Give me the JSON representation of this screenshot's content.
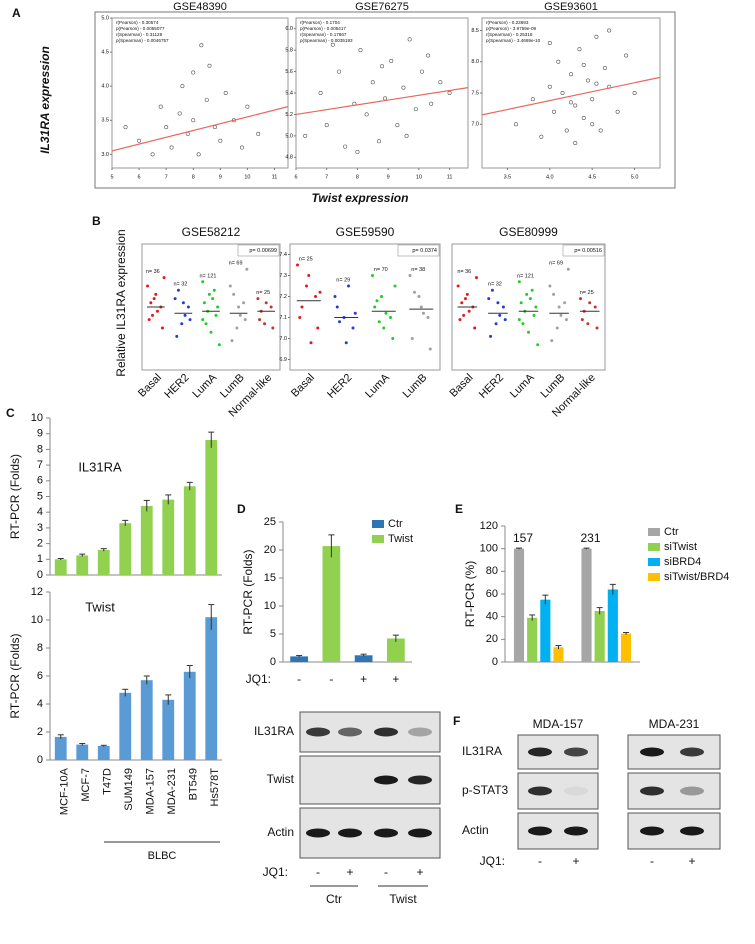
{
  "figure": {
    "panel_labels": [
      "A",
      "B",
      "C",
      "D",
      "E",
      "F"
    ],
    "a_ylabel": "IL31RA expression",
    "a_xlabel": "Twist expression",
    "b_ylabel": "Relative IL31RA expression",
    "c_group": "BLBC"
  },
  "chart_data": [
    {
      "type": "scatter",
      "title": "GSE48390",
      "annotations": [
        "r(Pearson) - 0.30574",
        "p(Pearson) - 0.0055077",
        "r(Spearman) - 0.31128",
        "p(Spearman) - 0.0046757"
      ],
      "x": [
        6,
        6.5,
        7,
        7.2,
        7.5,
        7.8,
        8,
        8,
        8.2,
        8.5,
        8.6,
        8.8,
        9,
        9.2,
        9.5,
        9.8,
        10,
        10.4,
        6.8,
        7.6,
        5.5,
        8.3
      ],
      "y": [
        3.2,
        3.0,
        3.4,
        3.1,
        3.6,
        3.3,
        3.5,
        4.2,
        3.0,
        3.8,
        4.3,
        3.4,
        3.2,
        3.9,
        3.5,
        3.1,
        3.7,
        3.3,
        3.7,
        4.0,
        3.4,
        4.6
      ],
      "trend": {
        "x": [
          5,
          11.5
        ],
        "y": [
          3.05,
          3.7
        ]
      },
      "xlim": [
        5,
        11.5
      ],
      "ylim": [
        2.8,
        5.0
      ],
      "xticks": [
        5,
        6,
        7,
        8,
        9,
        10,
        11
      ],
      "yticks": [
        {
          "value": 3,
          "label": "3.0"
        },
        3.5,
        {
          "value": 4,
          "label": "4.0"
        },
        4.5,
        {
          "value": 5,
          "label": "5.0"
        }
      ]
    },
    {
      "type": "scatter",
      "title": "GSE76275",
      "annotations": [
        "r(Pearson) - 0.1704",
        "p(Pearson) - 0.005417",
        "r(Spearman) - 0.17867",
        "p(Spearman) - 0.0035193"
      ],
      "x": [
        6.3,
        6.8,
        7.0,
        7.4,
        7.6,
        7.9,
        8.1,
        8.3,
        8.5,
        8.7,
        8.9,
        9.1,
        9.3,
        9.5,
        9.7,
        9.9,
        10.1,
        10.4,
        10.7,
        11.0,
        7.2,
        8.0,
        8.8,
        9.6,
        10.3
      ],
      "y": [
        5.0,
        5.4,
        5.1,
        5.6,
        4.9,
        5.3,
        5.8,
        5.2,
        5.5,
        4.95,
        5.35,
        5.7,
        5.1,
        5.45,
        5.9,
        5.25,
        5.6,
        5.3,
        5.5,
        5.4,
        5.85,
        4.85,
        5.65,
        5.0,
        5.75
      ],
      "trend": {
        "x": [
          6,
          11.6
        ],
        "y": [
          5.2,
          5.45
        ]
      },
      "xlim": [
        6,
        11.6
      ],
      "ylim": [
        4.7,
        6.1
      ],
      "xticks": [
        6,
        7,
        8,
        9,
        10,
        11
      ],
      "yticks": [
        4.8,
        {
          "value": 5,
          "label": "5.0"
        },
        5.2,
        5.4,
        5.6,
        5.8,
        {
          "value": 6,
          "label": "6.0"
        }
      ]
    },
    {
      "type": "scatter",
      "title": "GSE93601",
      "annotations": [
        "r(Pearson) - 0.23693",
        "p(Pearson) - 3.9759e-09",
        "r(Spearman) - 0.25318",
        "p(Spearman) - 3.4669e-10"
      ],
      "x": [
        3.6,
        3.8,
        3.9,
        4.0,
        4.05,
        4.1,
        4.15,
        4.2,
        4.25,
        4.3,
        4.35,
        4.4,
        4.45,
        4.5,
        4.55,
        4.6,
        4.65,
        4.7,
        4.8,
        4.9,
        5.0,
        4.0,
        4.3,
        4.5,
        4.7,
        4.25,
        4.55,
        4.4
      ],
      "y": [
        7.0,
        7.4,
        6.8,
        7.6,
        7.2,
        8.0,
        7.5,
        6.9,
        7.8,
        7.3,
        8.2,
        7.1,
        7.7,
        7.4,
        8.4,
        6.9,
        7.9,
        7.6,
        7.2,
        8.1,
        7.5,
        8.3,
        6.7,
        7.0,
        8.5,
        7.35,
        7.65,
        7.95
      ],
      "trend": {
        "x": [
          3.2,
          5.3
        ],
        "y": [
          7.15,
          7.75
        ]
      },
      "xlim": [
        3.2,
        5.3
      ],
      "ylim": [
        6.3,
        8.7
      ],
      "xticks": [
        3.5,
        {
          "value": 4,
          "label": "4.0"
        },
        4.5,
        {
          "value": 5,
          "label": "5.0"
        }
      ],
      "yticks": [
        {
          "value": 7,
          "label": "7.0"
        },
        7.5,
        {
          "value": 8,
          "label": "8.0"
        },
        8.5
      ]
    },
    {
      "type": "strip",
      "title": "GSE58212",
      "p_label": "p= 0.00699",
      "categories": [
        "Basal",
        "HER2",
        "LumA",
        "LumB",
        "Normal-like"
      ],
      "colors": [
        "#e31a1c",
        "#1f3fd6",
        "#22cc22",
        "#a0a0a0",
        "#c0392b"
      ],
      "n_labels": [
        "n= 36",
        "n= 32",
        "n= 121",
        "n= 69",
        "n= 25"
      ],
      "centers": [
        0.1,
        -0.05,
        0.0,
        -0.05,
        0.0
      ],
      "values": [
        [
          0.6,
          0.3,
          0.1,
          -0.2,
          0.4,
          -0.4,
          0.2,
          0.0,
          0.8,
          -0.1
        ],
        [
          0.3,
          -0.3,
          0.1,
          -0.6,
          0.2,
          -0.2,
          0.5,
          -0.1
        ],
        [
          0.7,
          0.4,
          -0.1,
          0.2,
          -0.5,
          0.1,
          -0.3,
          0.3,
          -0.8,
          0.0,
          0.5,
          -0.2
        ],
        [
          0.6,
          -0.4,
          0.2,
          -0.7,
          0.1,
          -0.2,
          0.4,
          -0.1,
          1.0
        ],
        [
          0.3,
          -0.3,
          0.1,
          -0.2,
          0.2,
          -0.4,
          0.0
        ]
      ],
      "ylim": [
        -1.4,
        1.6
      ]
    },
    {
      "type": "strip",
      "title": "GSE59590",
      "p_label": "p= 0.0374",
      "categories": [
        "Basal",
        "HER2",
        "LumA",
        "LumB"
      ],
      "colors": [
        "#e31a1c",
        "#1f3fd6",
        "#22cc22",
        "#a0a0a0"
      ],
      "n_labels": [
        "n= 25",
        "n= 29",
        "n= 70",
        "n= 38"
      ],
      "centers": [
        7.18,
        7.1,
        7.13,
        7.14
      ],
      "values": [
        [
          7.35,
          7.25,
          7.2,
          7.1,
          7.3,
          7.05,
          7.15,
          6.98,
          7.22
        ],
        [
          7.2,
          7.1,
          7.05,
          7.15,
          6.98,
          7.12,
          7.08,
          7.25
        ],
        [
          7.3,
          7.2,
          7.1,
          7.15,
          7.05,
          7.0,
          7.18,
          7.12,
          7.25,
          7.08
        ],
        [
          7.3,
          7.2,
          7.1,
          7.0,
          7.15,
          6.95,
          7.22,
          7.12
        ]
      ],
      "ylim": [
        6.85,
        7.45
      ],
      "yticks": [
        6.9,
        {
          "value": 7,
          "label": "7.0"
        },
        7.1,
        7.2,
        7.3,
        7.4
      ]
    },
    {
      "type": "strip",
      "title": "GSE80999",
      "p_label": "p= 0.00516",
      "categories": [
        "Basal",
        "HER2",
        "LumA",
        "LumB",
        "Normal-like"
      ],
      "colors": [
        "#e31a1c",
        "#1f3fd6",
        "#22cc22",
        "#a0a0a0",
        "#c0392b"
      ],
      "n_labels": [
        "n= 36",
        "n= 32",
        "n= 121",
        "n= 69",
        "n= 25"
      ],
      "centers": [
        0.1,
        -0.05,
        0.0,
        -0.05,
        0.0
      ],
      "values": [
        [
          0.6,
          0.3,
          0.1,
          -0.2,
          0.4,
          -0.4,
          0.2,
          0.0,
          0.8,
          -0.1
        ],
        [
          0.3,
          -0.3,
          0.1,
          -0.6,
          0.2,
          -0.2,
          0.5,
          -0.1
        ],
        [
          0.7,
          0.4,
          -0.1,
          0.2,
          -0.5,
          0.1,
          -0.3,
          0.3,
          -0.8,
          0.0,
          0.5,
          -0.2
        ],
        [
          0.6,
          -0.4,
          0.2,
          -0.7,
          0.1,
          -0.2,
          0.4,
          -0.1,
          1.0
        ],
        [
          0.3,
          -0.3,
          0.1,
          -0.2,
          0.2,
          -0.4,
          0.0
        ]
      ],
      "ylim": [
        -1.4,
        1.6
      ]
    },
    {
      "type": "bar",
      "title": "IL31RA",
      "ylabel": "RT-PCR (Folds)",
      "color": "#92d050",
      "values": [
        1,
        1.25,
        1.6,
        3.3,
        4.4,
        4.8,
        5.65,
        8.6
      ],
      "errors": [
        0.05,
        0.08,
        0.08,
        0.18,
        0.35,
        0.3,
        0.25,
        0.5
      ],
      "ylim": [
        0,
        10
      ],
      "yticks": [
        0,
        1,
        2,
        3,
        4,
        5,
        6,
        7,
        8,
        9,
        10
      ]
    },
    {
      "type": "bar",
      "title": "Twist",
      "ylabel": "RT-PCR (Folds)",
      "color": "#5b9bd5",
      "categories": [
        "MCF-10A",
        "MCF-7",
        "T47D",
        "SUM149",
        "MDA-157",
        "MDA-231",
        "BT549",
        "Hs578T"
      ],
      "values": [
        1.65,
        1.1,
        1.0,
        4.8,
        5.7,
        4.3,
        6.3,
        10.2
      ],
      "errors": [
        0.15,
        0.08,
        0.05,
        0.25,
        0.3,
        0.35,
        0.45,
        0.9
      ],
      "ylim": [
        0,
        12
      ],
      "yticks": [
        0,
        2,
        4,
        6,
        8,
        10,
        12
      ]
    },
    {
      "type": "bar",
      "ylabel": "RT-PCR (Folds)",
      "category_title": "JQ1:",
      "categories": [
        "-",
        "-",
        "+",
        "+"
      ],
      "legend": "upper right",
      "series": [
        {
          "name": "Ctr",
          "color": "#2e75b6",
          "values": [
            1,
            null,
            1.2,
            null
          ],
          "errors": [
            0.15,
            null,
            0.2,
            null
          ]
        },
        {
          "name": "Twist",
          "color": "#92d050",
          "values": [
            null,
            20.7,
            null,
            4.2
          ],
          "errors": [
            null,
            2.0,
            null,
            0.6
          ]
        }
      ],
      "ylim": [
        0,
        25
      ],
      "yticks": [
        0,
        5,
        10,
        15,
        20,
        25
      ]
    },
    {
      "type": "bar",
      "ylabel": "RT-PCR (%)",
      "categories": [
        "157",
        "231"
      ],
      "legend": "right",
      "series": [
        {
          "name": "Ctr",
          "color": "#a6a6a6",
          "values": [
            100,
            100
          ],
          "errors": [
            0.5,
            0.5
          ]
        },
        {
          "name": "siTwist",
          "color": "#92d050",
          "values": [
            39,
            45
          ],
          "errors": [
            2.5,
            3
          ]
        },
        {
          "name": "siBRD4",
          "color": "#00b0f0",
          "values": [
            55,
            64
          ],
          "errors": [
            4,
            4.5
          ]
        },
        {
          "name": "siTwist/BRD4",
          "color": "#ffc000",
          "values": [
            13,
            25
          ],
          "errors": [
            1.5,
            1
          ]
        }
      ],
      "ylim": [
        0,
        120
      ],
      "yticks": [
        0,
        20,
        40,
        60,
        80,
        100,
        120
      ]
    }
  ],
  "blots": [
    {
      "rows": [
        "IL31RA",
        "Twist",
        "Actin"
      ],
      "lane_title": "JQ1:",
      "lanes": [
        "-",
        "+",
        "-",
        "+"
      ],
      "groups": [
        "Ctr",
        "Twist"
      ]
    },
    {
      "headers": [
        "MDA-157",
        "MDA-231"
      ],
      "rows": [
        "IL31RA",
        "p-STAT3",
        "Actin"
      ],
      "lane_title": "JQ1:",
      "lanes": [
        "-",
        "+",
        "-",
        "+"
      ]
    }
  ]
}
